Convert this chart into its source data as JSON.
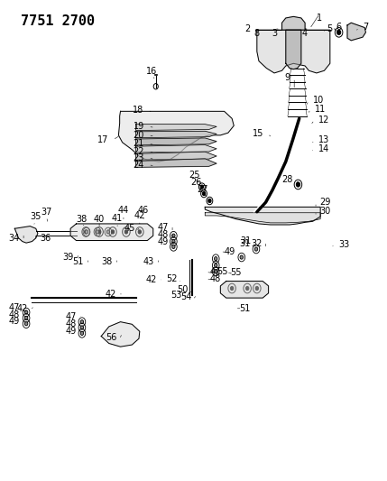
{
  "title": "7751 2700",
  "bg_color": "#ffffff",
  "line_color": "#000000",
  "title_fontsize": 11,
  "label_fontsize": 7,
  "fig_width": 4.29,
  "fig_height": 5.33,
  "dpi": 100
}
